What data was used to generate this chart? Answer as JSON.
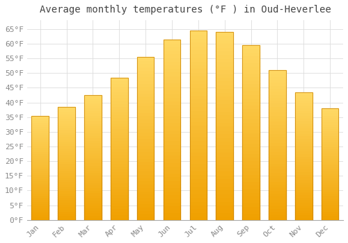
{
  "title": "Average monthly temperatures (°F ) in Oud-Heverlee",
  "months": [
    "Jan",
    "Feb",
    "Mar",
    "Apr",
    "May",
    "Jun",
    "Jul",
    "Aug",
    "Sep",
    "Oct",
    "Nov",
    "Dec"
  ],
  "values": [
    35.5,
    38.5,
    42.5,
    48.5,
    55.5,
    61.5,
    64.5,
    64.0,
    59.5,
    51.0,
    43.5,
    38.0
  ],
  "bar_color_top": "#FFD966",
  "bar_color_bottom": "#F0A000",
  "bar_edge_color": "#C88000",
  "background_color": "#ffffff",
  "grid_color": "#dddddd",
  "ylim": [
    0,
    68
  ],
  "yticks": [
    0,
    5,
    10,
    15,
    20,
    25,
    30,
    35,
    40,
    45,
    50,
    55,
    60,
    65
  ],
  "title_fontsize": 10,
  "tick_fontsize": 8,
  "tick_color": "#888888",
  "title_color": "#444444"
}
